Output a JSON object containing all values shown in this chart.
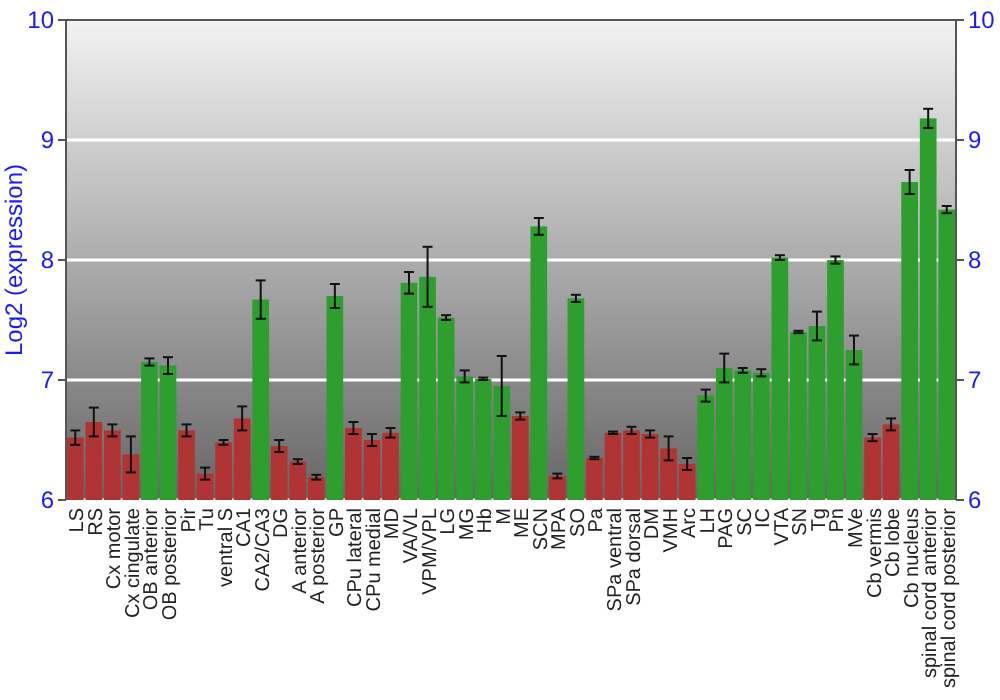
{
  "chart_data": {
    "type": "bar",
    "ylabel": "Log2 (expression)",
    "categories": [
      "LS",
      "RS",
      "Cx motor",
      "Cx cingulate",
      "OB anterior",
      "OB posterior",
      "Pir",
      "Tu",
      "ventral S",
      "CA1",
      "CA2/CA3",
      "DG",
      "A anterior",
      "A posterior",
      "GP",
      "CPu lateral",
      "CPu medial",
      "MD",
      "VA/VL",
      "VPM/VPL",
      "LG",
      "MG",
      "Hb",
      "M",
      "ME",
      "SCN",
      "MPA",
      "SO",
      "Pa",
      "SPa ventral",
      "SPa dorsal",
      "DM",
      "VMH",
      "Arc",
      "LH",
      "PAG",
      "SC",
      "IC",
      "VTA",
      "SN",
      "Tg",
      "Pn",
      "MVe",
      "Cb vermis",
      "Cb lobe",
      "Cb nucleus",
      "spinal cord anterior",
      "spinal cord posterior"
    ],
    "values": [
      6.52,
      6.65,
      6.58,
      6.38,
      7.15,
      7.12,
      6.58,
      6.22,
      6.48,
      6.68,
      7.67,
      6.45,
      6.32,
      6.19,
      7.7,
      6.6,
      6.5,
      6.56,
      7.81,
      7.86,
      7.52,
      7.03,
      7.01,
      6.95,
      6.7,
      8.28,
      6.2,
      7.68,
      6.35,
      6.56,
      6.58,
      6.55,
      6.43,
      6.3,
      6.87,
      7.1,
      7.08,
      7.06,
      8.02,
      7.4,
      7.45,
      8.0,
      7.25,
      6.52,
      6.63,
      8.65,
      9.18,
      8.42
    ],
    "errors": [
      0.06,
      0.12,
      0.05,
      0.15,
      0.03,
      0.07,
      0.05,
      0.05,
      0.02,
      0.1,
      0.16,
      0.05,
      0.02,
      0.02,
      0.1,
      0.05,
      0.05,
      0.04,
      0.09,
      0.25,
      0.02,
      0.05,
      0.01,
      0.25,
      0.03,
      0.07,
      0.02,
      0.03,
      0.01,
      0.01,
      0.03,
      0.03,
      0.1,
      0.05,
      0.05,
      0.12,
      0.02,
      0.03,
      0.02,
      0.01,
      0.12,
      0.03,
      0.12,
      0.03,
      0.05,
      0.1,
      0.08,
      0.03
    ],
    "colors": [
      "#b03434",
      "#b03434",
      "#b03434",
      "#b03434",
      "#2e9e2e",
      "#2e9e2e",
      "#b03434",
      "#b03434",
      "#b03434",
      "#b03434",
      "#2e9e2e",
      "#b03434",
      "#b03434",
      "#b03434",
      "#2e9e2e",
      "#b03434",
      "#b03434",
      "#b03434",
      "#2e9e2e",
      "#2e9e2e",
      "#2e9e2e",
      "#2e9e2e",
      "#2e9e2e",
      "#2e9e2e",
      "#b03434",
      "#2e9e2e",
      "#b03434",
      "#2e9e2e",
      "#b03434",
      "#b03434",
      "#b03434",
      "#b03434",
      "#b03434",
      "#b03434",
      "#2e9e2e",
      "#2e9e2e",
      "#2e9e2e",
      "#2e9e2e",
      "#2e9e2e",
      "#2e9e2e",
      "#2e9e2e",
      "#2e9e2e",
      "#2e9e2e",
      "#b03434",
      "#b03434",
      "#2e9e2e",
      "#2e9e2e",
      "#2e9e2e"
    ],
    "ylim": [
      6,
      10
    ],
    "yticks": [
      6,
      7,
      8,
      9,
      10
    ],
    "y2lim": [
      6,
      10
    ],
    "y2ticks": [
      6,
      7,
      8,
      9,
      10
    ],
    "grid": "y"
  }
}
